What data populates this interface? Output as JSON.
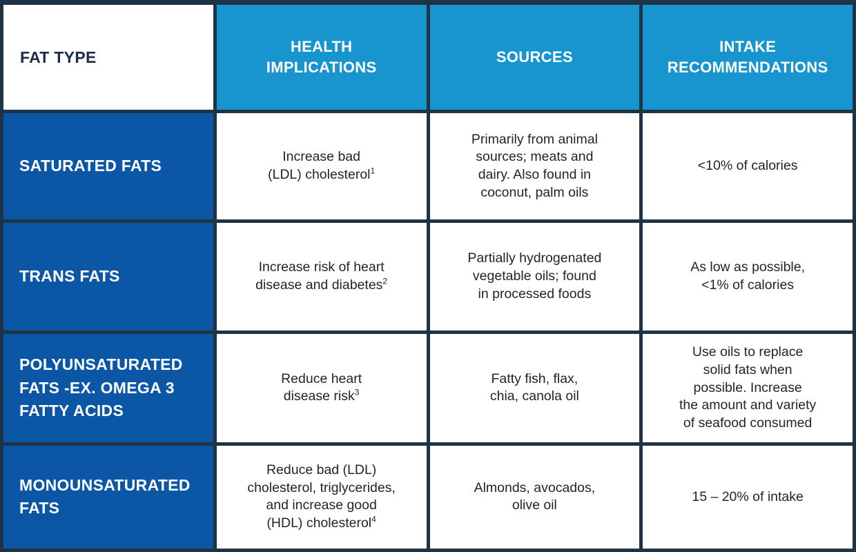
{
  "table": {
    "columns": [
      {
        "label": "FAT TYPE"
      },
      {
        "label": "HEALTH\nIMPLICATIONS"
      },
      {
        "label": "SOURCES"
      },
      {
        "label": "INTAKE\nRECOMMENDATIONS"
      }
    ],
    "rows": [
      {
        "fat_type": "SATURATED FATS",
        "health": "Increase bad\n(LDL) cholesterol",
        "health_sup": "1",
        "sources": "Primarily from animal\nsources; meats and\ndairy. Also found in\ncoconut, palm oils",
        "intake": "<10% of calories"
      },
      {
        "fat_type": "TRANS FATS",
        "health": "Increase risk of heart\ndisease and diabetes",
        "health_sup": "2",
        "sources": "Partially hydrogenated\nvegetable oils; found\nin processed foods",
        "intake": "As low as possible,\n<1% of calories"
      },
      {
        "fat_type": "POLYUNSATURATED\nFATS -EX. OMEGA 3\nFATTY ACIDS",
        "health": "Reduce heart\ndisease risk",
        "health_sup": "3",
        "sources": "Fatty fish, flax,\nchia, canola oil",
        "intake": "Use oils to replace\nsolid fats when\npossible. Increase\nthe amount and variety\nof seafood consumed"
      },
      {
        "fat_type": "MONOUNSATURATED\nFATS",
        "health": "Reduce bad (LDL)\ncholesterol, triglycerides,\nand increase good\n(HDL) cholesterol",
        "health_sup": "4",
        "sources": "Almonds, avocados,\nolive oil",
        "intake": "15 – 20% of intake"
      }
    ],
    "colors": {
      "grid_border": "#1f3347",
      "column_header_bg": "#1895cf",
      "row_header_bg": "#0c56a6",
      "header_text": "#ffffff",
      "corner_text": "#1b2e49",
      "body_text": "#222426",
      "cell_bg": "#ffffff"
    }
  },
  "chart_data": {
    "type": "table",
    "title": "Fat types: health implications, sources and intake recommendations",
    "columns": [
      "FAT TYPE",
      "HEALTH IMPLICATIONS",
      "SOURCES",
      "INTAKE RECOMMENDATIONS"
    ],
    "rows": [
      [
        "SATURATED FATS",
        "Increase bad (LDL) cholesterol¹",
        "Primarily from animal sources; meats and dairy. Also found in coconut, palm oils",
        "<10% of calories"
      ],
      [
        "TRANS FATS",
        "Increase risk of heart disease and diabetes²",
        "Partially hydrogenated vegetable oils; found in processed foods",
        "As low as possible, <1% of calories"
      ],
      [
        "POLYUNSATURATED FATS -EX. OMEGA 3 FATTY ACIDS",
        "Reduce heart disease risk³",
        "Fatty fish, flax, chia, canola oil",
        "Use oils to replace solid fats when possible. Increase the amount and variety of seafood consumed"
      ],
      [
        "MONOUNSATURATED FATS",
        "Reduce bad (LDL) cholesterol, triglycerides, and increase good (HDL) cholesterol⁴",
        "Almonds, avocados, olive oil",
        "15 – 20% of intake"
      ]
    ]
  }
}
